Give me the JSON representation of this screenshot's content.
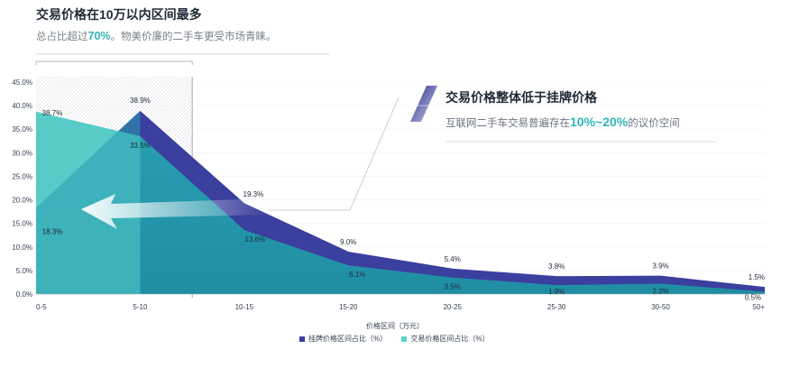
{
  "header": {
    "title": "交易价格在10万以内区间最多",
    "subtitle_prefix": "总占比超过",
    "subtitle_highlight": "70%",
    "subtitle_suffix": "。物美价廉的二手车更受市场青睐。"
  },
  "callout": {
    "title": "交易价格整体低于挂牌价格",
    "text_prefix": "互联网二手车交易普遍存在",
    "text_highlight": "10%~20%",
    "text_suffix": "的议价空间"
  },
  "colors": {
    "listing": "#3b3f9e",
    "transaction": "#2a9fb2",
    "transaction_light": "#5fd3cb",
    "accent": "#2fb5b6"
  },
  "chart_data": {
    "type": "area",
    "categories": [
      "0-5",
      "5-10",
      "10-15",
      "15-20",
      "20-25",
      "25-30",
      "30-50",
      "50+"
    ],
    "series": [
      {
        "name": "挂牌价格区间占比（%）",
        "values": [
          18.3,
          38.9,
          19.3,
          9.0,
          5.4,
          3.8,
          3.9,
          1.5
        ],
        "labels": [
          "18.3%",
          "38.9%",
          "19.3%",
          "9.0%",
          "5.4%",
          "3.8%",
          "3.9%",
          "1.5%"
        ]
      },
      {
        "name": "交易价格区间占比（%）",
        "values": [
          38.7,
          33.5,
          13.6,
          6.1,
          3.5,
          1.9,
          2.2,
          0.5
        ],
        "labels": [
          "38.7%",
          "33.5%",
          "13.6%",
          "6.1%",
          "3.5%",
          "1.9%",
          "2.2%",
          "0.5%"
        ]
      }
    ],
    "xlabel": "价格区间（万元）",
    "ylabel": "",
    "ylim": [
      0,
      45
    ],
    "yticks": [
      "0.0%",
      "5.0%",
      "10.0%",
      "15.0%",
      "20.0%",
      "25.0%",
      "30.0%",
      "35.0%",
      "40.0%",
      "45.0%"
    ],
    "legend": "bottom"
  }
}
